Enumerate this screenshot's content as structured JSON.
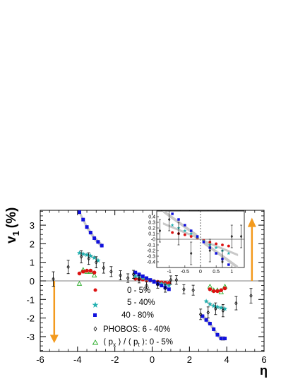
{
  "chart_data": {
    "type": "scatter",
    "xlabel": "η",
    "ylabel": "v",
    "ylabel_sub": "1",
    "ylabel_unit": "(%)",
    "xlim": [
      -6,
      6
    ],
    "ylim": [
      -3.8,
      3.8
    ],
    "x_ticks": [
      -6,
      -4,
      -2,
      0,
      2,
      4,
      6
    ],
    "y_ticks": [
      -3,
      -2,
      -1,
      0,
      1,
      2,
      3
    ],
    "legend": {
      "placement": "bottom-center",
      "entries": [
        "0 - 5%",
        "5 - 40%",
        "40 - 80%",
        "PHOBOS: 6 - 40%",
        "⟨ p",
        "x",
        " ⟩ / ⟨ p",
        "t",
        " ⟩: 0 - 5%"
      ]
    },
    "colors": {
      "central": "#dd1111",
      "midcentral": "#22b0b0",
      "peripheral": "#1010dd",
      "phobos": "#000000",
      "px": "#22aa22",
      "band": "#c0c0c0",
      "arrow": "#f39a1e"
    },
    "series": [
      {
        "name": "0 - 5%",
        "marker": "circle",
        "x": [
          -3.9,
          -3.7,
          -3.5,
          -3.3,
          -3.1,
          -0.9,
          -0.7,
          -0.5,
          -0.3,
          -0.1,
          0.1,
          0.3,
          0.5,
          0.7,
          0.9,
          3.1,
          3.3,
          3.5,
          3.7,
          3.9
        ],
        "y": [
          0.4,
          0.5,
          0.55,
          0.55,
          0.45,
          0.12,
          0.1,
          0.08,
          0.05,
          0.02,
          -0.02,
          -0.05,
          -0.08,
          -0.1,
          -0.12,
          -0.45,
          -0.55,
          -0.55,
          -0.5,
          -0.4
        ]
      },
      {
        "name": "5 - 40%",
        "marker": "star",
        "x": [
          -3.9,
          -3.7,
          -3.5,
          -3.3,
          -3.1,
          -2.9,
          -0.9,
          -0.7,
          -0.5,
          -0.3,
          -0.1,
          0.1,
          0.3,
          0.5,
          0.7,
          0.9,
          2.9,
          3.1,
          3.3,
          3.5,
          3.7,
          3.9
        ],
        "y": [
          1.5,
          1.45,
          1.4,
          1.35,
          1.25,
          1.1,
          0.25,
          0.2,
          0.15,
          0.1,
          0.03,
          -0.03,
          -0.1,
          -0.15,
          -0.2,
          -0.25,
          -1.1,
          -1.25,
          -1.35,
          -1.4,
          -1.45,
          -1.5
        ]
      },
      {
        "name": "40 - 80%",
        "marker": "square",
        "x": [
          -3.9,
          -3.7,
          -3.5,
          -3.3,
          -3.1,
          -2.9,
          -2.7,
          -0.9,
          -0.7,
          -0.5,
          -0.3,
          -0.1,
          0.1,
          0.3,
          0.5,
          0.7,
          0.9,
          2.7,
          2.9,
          3.1,
          3.3,
          3.5,
          3.7,
          3.9
        ],
        "y": [
          3.7,
          3.3,
          2.9,
          2.6,
          2.3,
          2.1,
          1.9,
          0.45,
          0.35,
          0.25,
          0.15,
          0.05,
          -0.05,
          -0.15,
          -0.25,
          -0.35,
          -0.45,
          -1.9,
          -2.1,
          -2.3,
          -2.6,
          -2.9,
          -3.1,
          -3.1
        ]
      },
      {
        "name": "PHOBOS: 6 - 40%",
        "marker": "diamond",
        "x": [
          -5.3,
          -4.5,
          -3.8,
          -3.4,
          -3.0,
          -2.6,
          -2.2,
          -1.7,
          -1.3,
          -1.0,
          -0.7,
          -0.3,
          0.3,
          0.7,
          1.0,
          1.3,
          1.7,
          2.2,
          2.6,
          3.0,
          3.4,
          3.8,
          4.5,
          5.3
        ],
        "y": [
          0.1,
          0.75,
          1.3,
          1.2,
          1.0,
          0.7,
          0.5,
          0.3,
          0.15,
          0.35,
          0.1,
          -0.25,
          -0.2,
          -0.4,
          0.05,
          0.05,
          -0.45,
          -0.5,
          -1.8,
          -1.7,
          -1.5,
          -1.6,
          -1.2,
          -0.8
        ]
      },
      {
        "name": "⟨ px ⟩ / ⟨ pt ⟩: 0 - 5%",
        "marker": "triangle",
        "x": [
          -3.9,
          -3.7,
          -3.5,
          -3.3,
          -3.1,
          3.1,
          3.3,
          3.5,
          3.7,
          3.9
        ],
        "y": [
          -0.15,
          0.6,
          0.5,
          0.5,
          0.3,
          -0.3,
          -0.5,
          -0.5,
          -0.6,
          -0.3
        ]
      }
    ],
    "inset": {
      "xlim": [
        -1.4,
        1.4
      ],
      "ylim": [
        -0.5,
        0.5
      ],
      "x_ticks": [
        -1,
        -0.5,
        0,
        0.5,
        1
      ],
      "x_tick_labels": [
        "-1",
        "-0.5",
        "0",
        "0.5",
        "1"
      ],
      "y_ticks": [
        -0.4,
        -0.3,
        -0.2,
        -0.1,
        0,
        0.1,
        0.2,
        0.3,
        0.4
      ],
      "y_tick_labels": [
        "-0.4",
        "-0.3",
        "-0.2",
        "-0.1",
        "-0",
        "0.1",
        "0.2",
        "0.3",
        "0.4"
      ]
    }
  }
}
